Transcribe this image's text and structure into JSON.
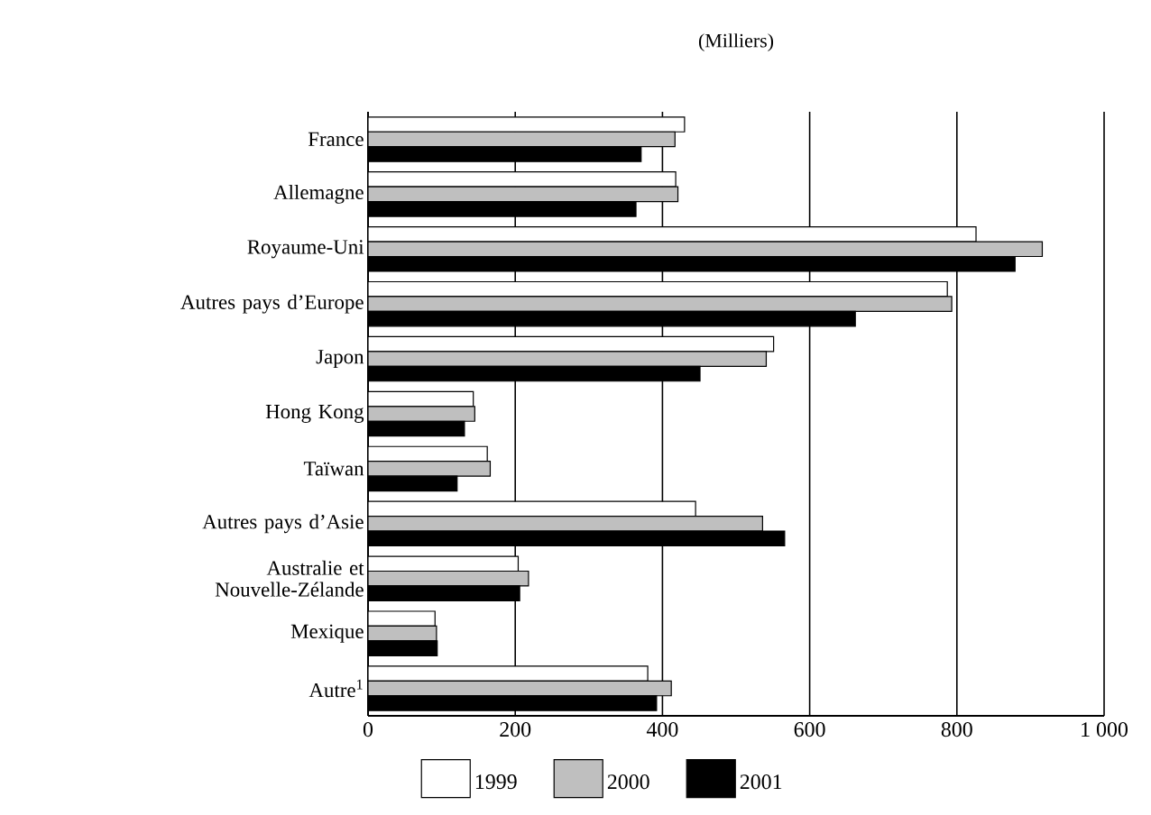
{
  "chart_data": {
    "type": "bar",
    "orientation": "horizontal",
    "title": "(Milliers)",
    "categories": [
      "France",
      "Allemagne",
      "Royaume-Uni",
      "Autres pays d’Europe",
      "Japon",
      "Hong Kong",
      "Taïwan",
      "Autres pays d’Asie",
      "Australie et Nouvelle-Zélande",
      "Mexique",
      "Autre$^{1}$"
    ],
    "series": [
      {
        "name": "1999",
        "color": "#ffffff",
        "values": [
          430,
          418,
          826,
          787,
          551,
          143,
          162,
          445,
          204,
          91,
          380
        ]
      },
      {
        "name": "2000",
        "color": "#bfbfbf",
        "values": [
          417,
          421,
          916,
          793,
          541,
          145,
          166,
          536,
          218,
          93,
          412
        ]
      },
      {
        "name": "2001",
        "color": "#000000",
        "values": [
          371,
          364,
          879,
          662,
          451,
          131,
          121,
          566,
          206,
          94,
          392
        ]
      }
    ],
    "xlim": [
      0,
      1000
    ],
    "xticks": [
      0,
      200,
      400,
      600,
      800,
      {
        "value": 1000,
        "label": "1 000"
      }
    ],
    "grid": "x",
    "legend": "bottom"
  }
}
